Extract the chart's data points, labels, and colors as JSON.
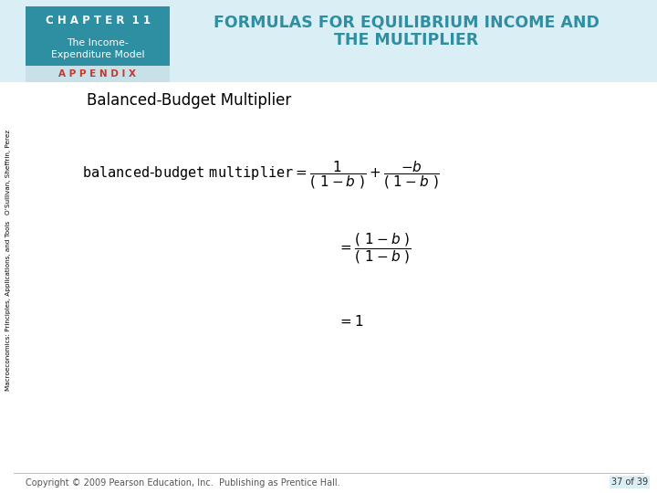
{
  "bg_color": "#ffffff",
  "header_box_color": "#2e8fa3",
  "header_text": "C H A P T E R  1 1",
  "subheader_text": "The Income-\nExpenditure Model",
  "appendix_bg": "#c8e0e8",
  "appendix_text": "A P P E N D I X",
  "appendix_text_color": "#c0392b",
  "title_line1": "FORMULAS FOR EQUILIBRIUM INCOME AND",
  "title_line2": "THE MULTIPLIER",
  "title_color": "#2e8fa3",
  "section_title": "Balanced-Budget Multiplier",
  "sidebar_text": "Macroeconomics: Principles, Applications, and Tools   O’Sullivan, Sheffrin, Perez",
  "footer_text": "Copyright © 2009 Pearson Education, Inc.  Publishing as Prentice Hall.",
  "page_text": "37 of 39",
  "header_bg_color": "#daeef5"
}
